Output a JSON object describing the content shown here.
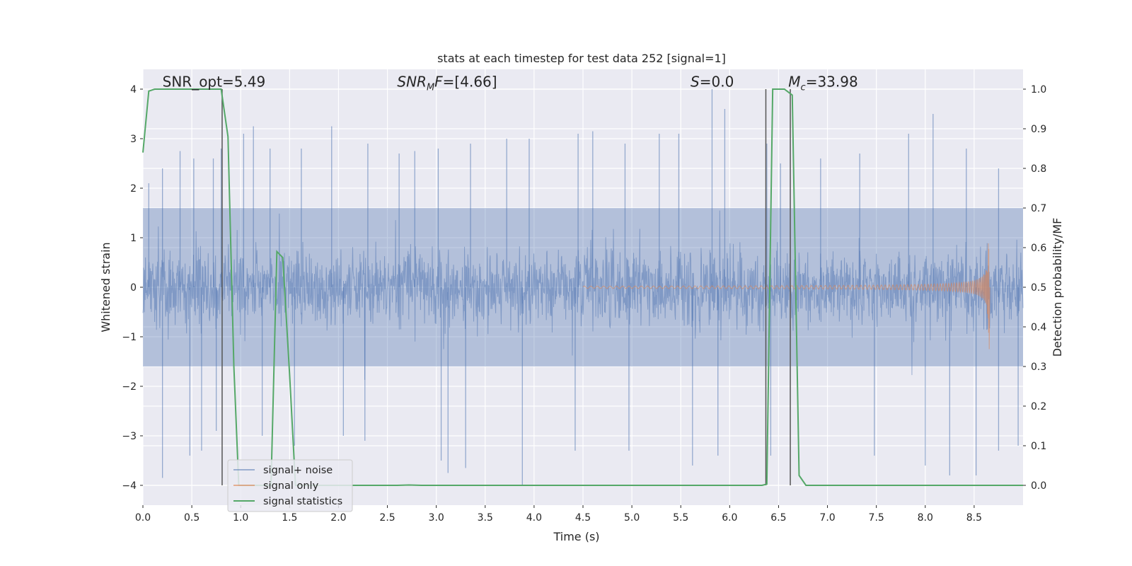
{
  "chart_data": {
    "type": "line",
    "title": "stats at each timestep for test data 252 [signal=1]",
    "xlabel": "Time (s)",
    "ylabel": "Whitened strain",
    "y2label": "Detection probability/MF",
    "xlim": [
      0.0,
      9.0
    ],
    "ylim": [
      -4.4,
      4.4
    ],
    "y2lim": [
      -0.05,
      1.05
    ],
    "xticks": [
      "0.0",
      "0.5",
      "1.0",
      "1.5",
      "2.0",
      "2.5",
      "3.0",
      "3.5",
      "4.0",
      "4.5",
      "5.0",
      "5.5",
      "6.0",
      "6.5",
      "7.0",
      "7.5",
      "8.0",
      "8.5"
    ],
    "xtick_values": [
      0.0,
      0.5,
      1.0,
      1.5,
      2.0,
      2.5,
      3.0,
      3.5,
      4.0,
      4.5,
      5.0,
      5.5,
      6.0,
      6.5,
      7.0,
      7.5,
      8.0,
      8.5
    ],
    "yticks": [
      "−4",
      "−3",
      "−2",
      "−1",
      "0",
      "1",
      "2",
      "3",
      "4"
    ],
    "ytick_values": [
      -4,
      -3,
      -2,
      -1,
      0,
      1,
      2,
      3,
      4
    ],
    "y2ticks": [
      "0.0",
      "0.1",
      "0.2",
      "0.3",
      "0.4",
      "0.5",
      "0.6",
      "0.7",
      "0.8",
      "0.9",
      "1.0"
    ],
    "y2tick_values": [
      0.0,
      0.1,
      0.2,
      0.3,
      0.4,
      0.5,
      0.6,
      0.7,
      0.8,
      0.9,
      1.0
    ],
    "grid": true,
    "legend_position": "lower-left",
    "series": [
      {
        "name": "signal+ noise",
        "color": "#4c72b0",
        "axis": "left",
        "description_values": {
          "typical_min": -1.6,
          "typical_max": 1.6,
          "peak_max": 4.0,
          "peak_min": -4.0
        },
        "spikes_up": [
          [
            0.06,
            2.1
          ],
          [
            0.2,
            2.4
          ],
          [
            0.38,
            2.75
          ],
          [
            0.52,
            2.6
          ],
          [
            0.72,
            2.6
          ],
          [
            0.8,
            2.8
          ],
          [
            1.03,
            3.1
          ],
          [
            1.13,
            3.25
          ],
          [
            1.3,
            2.8
          ],
          [
            1.62,
            2.8
          ],
          [
            1.93,
            3.25
          ],
          [
            2.3,
            2.9
          ],
          [
            2.62,
            2.7
          ],
          [
            2.78,
            2.75
          ],
          [
            3.02,
            2.8
          ],
          [
            3.35,
            2.9
          ],
          [
            3.72,
            3.0
          ],
          [
            3.95,
            3.0
          ],
          [
            4.45,
            3.1
          ],
          [
            4.6,
            3.15
          ],
          [
            4.93,
            2.9
          ],
          [
            5.28,
            3.1
          ],
          [
            5.48,
            3.1
          ],
          [
            5.82,
            4.0
          ],
          [
            5.95,
            3.6
          ],
          [
            6.38,
            2.9
          ],
          [
            6.52,
            2.5
          ],
          [
            6.93,
            2.6
          ],
          [
            7.33,
            2.7
          ],
          [
            7.83,
            3.1
          ],
          [
            8.08,
            3.5
          ],
          [
            8.42,
            2.8
          ],
          [
            8.75,
            2.4
          ]
        ],
        "spikes_down": [
          [
            0.2,
            -3.85
          ],
          [
            0.48,
            -3.4
          ],
          [
            0.6,
            -3.3
          ],
          [
            0.75,
            -2.9
          ],
          [
            1.22,
            -3.0
          ],
          [
            1.55,
            -3.2
          ],
          [
            2.05,
            -3.0
          ],
          [
            2.27,
            -3.1
          ],
          [
            3.05,
            -3.5
          ],
          [
            3.12,
            -3.75
          ],
          [
            3.3,
            -3.65
          ],
          [
            3.88,
            -4.0
          ],
          [
            4.42,
            -3.3
          ],
          [
            4.97,
            -3.3
          ],
          [
            5.62,
            -3.6
          ],
          [
            5.88,
            -3.4
          ],
          [
            6.42,
            -3.4
          ],
          [
            7.48,
            -3.4
          ],
          [
            8.0,
            -3.6
          ],
          [
            8.25,
            -3.8
          ],
          [
            8.52,
            -3.8
          ],
          [
            8.75,
            -3.3
          ],
          [
            8.95,
            -3.2
          ]
        ]
      },
      {
        "name": "signal only",
        "color": "#dd8452",
        "axis": "left",
        "chirp_start": 4.5,
        "chirp_end": 8.65,
        "peak_amplitude": 1.35
      },
      {
        "name": "signal statistics",
        "color": "#55a868",
        "axis": "right",
        "points": [
          [
            0.0,
            0.84
          ],
          [
            0.06,
            0.995
          ],
          [
            0.12,
            1.0
          ],
          [
            0.8,
            1.0
          ],
          [
            0.87,
            0.88
          ],
          [
            0.93,
            0.3
          ],
          [
            0.98,
            0.0
          ],
          [
            1.31,
            0.0
          ],
          [
            1.37,
            0.59
          ],
          [
            1.43,
            0.575
          ],
          [
            1.5,
            0.28
          ],
          [
            1.56,
            0.0
          ],
          [
            2.6,
            0.0
          ],
          [
            2.72,
            0.001
          ],
          [
            2.85,
            0.0
          ],
          [
            6.33,
            0.0
          ],
          [
            6.38,
            0.003
          ],
          [
            6.44,
            1.0
          ],
          [
            6.56,
            1.0
          ],
          [
            6.64,
            0.985
          ],
          [
            6.71,
            0.025
          ],
          [
            6.78,
            0.0
          ],
          [
            9.0,
            0.0
          ]
        ]
      }
    ],
    "vertical_lines": [
      {
        "x": 0.81,
        "y_from": -4,
        "y_to": 4,
        "color": "#555555"
      },
      {
        "x": 6.37,
        "y_from": -4,
        "y_to": 4,
        "color": "#555555"
      },
      {
        "x": 6.62,
        "y_from": -4,
        "y_to": 4,
        "color": "#555555"
      }
    ],
    "annotations": [
      {
        "id": "snr-opt",
        "text": "SNR_opt=5.49",
        "x": 0.2,
        "y": 4.05
      },
      {
        "id": "snr-mf",
        "text": "SNR_MF=[4.66]",
        "x": 2.6,
        "y": 4.05
      },
      {
        "id": "s-stat",
        "text": "S=0.0",
        "x": 5.6,
        "y": 4.05
      },
      {
        "id": "chirp-mass",
        "text": "M_c=33.98",
        "x": 6.6,
        "y": 4.05
      }
    ]
  }
}
